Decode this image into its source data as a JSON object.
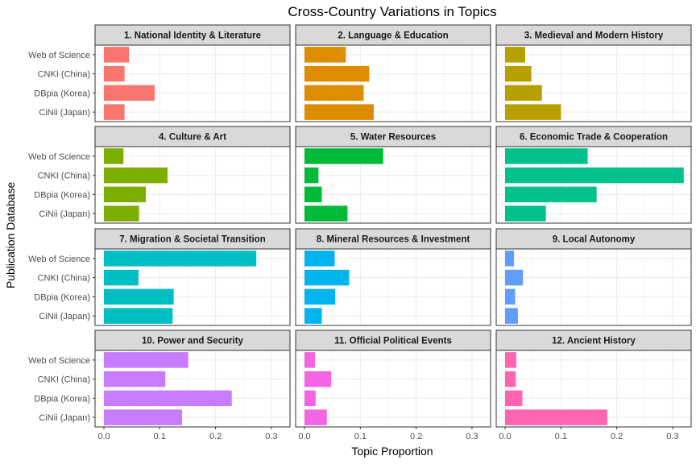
{
  "chart_data": {
    "type": "bar",
    "orientation": "horizontal",
    "title": "Cross-Country Variations in Topics",
    "xlabel": "Topic Proportion",
    "ylabel": "Publication Database",
    "xlim": [
      0,
      0.3
    ],
    "xticks": [
      "0.0",
      "0.1",
      "0.2",
      "0.3"
    ],
    "categories": [
      "Web of Science",
      "CNKI (China)",
      "DBpia (Korea)",
      "CiNii (Japan)"
    ],
    "grid": true,
    "facets": [
      {
        "name": "1. National Identity & Literature",
        "color": "#F8766D",
        "values": [
          0.045,
          0.037,
          0.091,
          0.037
        ]
      },
      {
        "name": "2. Language & Education",
        "color": "#DE8C00",
        "values": [
          0.074,
          0.116,
          0.106,
          0.124
        ]
      },
      {
        "name": "3. Medieval and Modern History",
        "color": "#B79F00",
        "values": [
          0.036,
          0.047,
          0.066,
          0.1
        ]
      },
      {
        "name": "4. Culture & Art",
        "color": "#7CAE00",
        "values": [
          0.035,
          0.114,
          0.075,
          0.063
        ]
      },
      {
        "name": "5. Water Resources",
        "color": "#00BA38",
        "values": [
          0.141,
          0.025,
          0.031,
          0.077
        ]
      },
      {
        "name": "6. Economic Trade & Cooperation",
        "color": "#00C08B",
        "values": [
          0.148,
          0.32,
          0.164,
          0.073
        ]
      },
      {
        "name": "7. Migration & Societal Transition",
        "color": "#00BFC4",
        "values": [
          0.273,
          0.062,
          0.125,
          0.123
        ]
      },
      {
        "name": "8. Mineral Resources & Investment",
        "color": "#00B4F0",
        "values": [
          0.054,
          0.08,
          0.055,
          0.031
        ]
      },
      {
        "name": "9. Local Autonomy",
        "color": "#619CFF",
        "values": [
          0.016,
          0.032,
          0.018,
          0.023
        ]
      },
      {
        "name": "10. Power and Security",
        "color": "#C77CFF",
        "values": [
          0.151,
          0.11,
          0.229,
          0.14
        ]
      },
      {
        "name": "11. Official Political Events",
        "color": "#F564E3",
        "values": [
          0.019,
          0.048,
          0.02,
          0.04
        ]
      },
      {
        "name": "12. Ancient History",
        "color": "#FF64B0",
        "values": [
          0.02,
          0.019,
          0.031,
          0.183
        ]
      }
    ]
  }
}
